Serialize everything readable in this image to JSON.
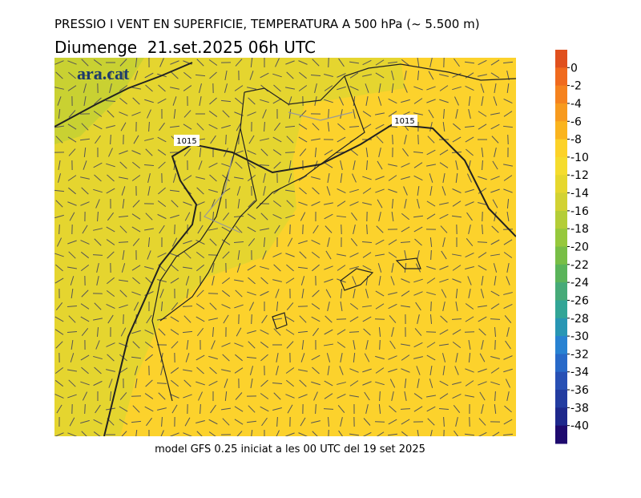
{
  "header": {
    "title": "PRESSIO I VENT EN SUPERFICIE, TEMPERATURA A 500 hPa (~ 5.500 m)",
    "subtitle": "Diumenge  21.set.2025 06h UTC"
  },
  "map": {
    "logo": "ara.cat",
    "isobar_labels": [
      "1015",
      "1015"
    ]
  },
  "colorbar": {
    "lim": [
      2,
      -42
    ],
    "ticks": [
      0,
      -2,
      -4,
      -6,
      -8,
      -10,
      -12,
      -14,
      -16,
      -18,
      -20,
      -22,
      -24,
      -26,
      -28,
      -30,
      -32,
      -34,
      -36,
      -38,
      -40
    ],
    "colors": [
      "#e0501e",
      "#f06a1e",
      "#f5821e",
      "#f79a1e",
      "#fab41e",
      "#fcd228",
      "#f5dc2d",
      "#e6d72d",
      "#d2d232",
      "#b4cd37",
      "#96c83c",
      "#78be46",
      "#5ab45a",
      "#46aa78",
      "#32a596",
      "#2896b4",
      "#2882d2",
      "#2869c8",
      "#2850b4",
      "#233ca0",
      "#1e288c",
      "#1e0a6e"
    ]
  },
  "footer": "model GFS 0.25 iniciat a les 00 UTC del 19 set 2025"
}
